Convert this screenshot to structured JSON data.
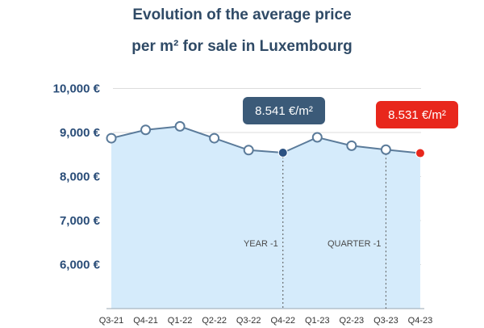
{
  "header": {
    "title_line1": "Evolution of the average price",
    "title_line2": "per m² for sale in Luxembourg"
  },
  "chart_data": {
    "type": "area",
    "title": "Evolution of the average price per m² for sale in Luxembourg",
    "categories": [
      "Q3-21",
      "Q4-21",
      "Q1-22",
      "Q2-22",
      "Q3-22",
      "Q4-22",
      "Q1-23",
      "Q2-23",
      "Q3-23",
      "Q4-23"
    ],
    "series": [
      {
        "values": [
          8870,
          9060,
          9140,
          8870,
          8600,
          8541,
          8890,
          8700,
          8610,
          8531
        ]
      }
    ],
    "ylim": [
      5000,
      10000
    ],
    "yticks": [
      6000,
      7000,
      8000,
      9000,
      10000
    ],
    "ytick_labels": [
      "6,000 €",
      "7,000 €",
      "8,000 €",
      "9,000 €",
      "10,000 €"
    ],
    "grid": true,
    "annotations": [
      {
        "category": "Q4-22",
        "text": "YEAR -1"
      },
      {
        "category": "Q3-23",
        "text": "QUARTER -1"
      }
    ],
    "callouts": [
      {
        "category": "Q4-22",
        "text": "8.541 €/m²",
        "color": "#3b5a78"
      },
      {
        "category": "Q4-23",
        "text": "8.531 €/m²",
        "color": "#e8271c"
      }
    ],
    "colors": {
      "line": "#5b7b9a",
      "fill": "#d5ebfb",
      "marker_highlight": "#2c5282",
      "marker_current": "#e8271c"
    }
  }
}
